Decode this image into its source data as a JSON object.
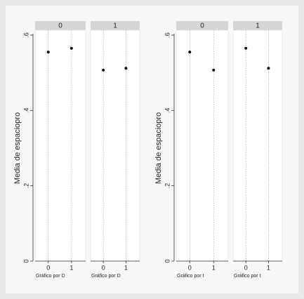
{
  "chart_data": [
    {
      "type": "dot",
      "ylabel": "Media de espaciopro",
      "note": "Gráfico por D",
      "ylim": [
        0,
        0.6
      ],
      "yticks": [
        0,
        {
          "value": 0.2,
          "label": ".2"
        },
        {
          "value": 0.4,
          "label": ".4"
        },
        {
          "value": 0.6,
          "label": ".6"
        }
      ],
      "categories": [
        "0",
        "1"
      ],
      "color": "#111111",
      "grid": true,
      "panels": [
        {
          "title": "0",
          "values": [
            0.555,
            0.565
          ]
        },
        {
          "title": "1",
          "values": [
            0.507,
            0.512
          ]
        }
      ]
    },
    {
      "type": "dot",
      "ylabel": "Media de espaciopro",
      "note": "Gráfico por t",
      "ylim": [
        0,
        0.6
      ],
      "yticks": [
        0,
        {
          "value": 0.2,
          "label": ".2"
        },
        {
          "value": 0.4,
          "label": ".4"
        },
        {
          "value": 0.6,
          "label": ".6"
        }
      ],
      "categories": [
        "0",
        "1"
      ],
      "color": "#111111",
      "grid": true,
      "panels": [
        {
          "title": "0",
          "values": [
            0.555,
            0.507
          ]
        },
        {
          "title": "1",
          "values": [
            0.565,
            0.512
          ]
        }
      ]
    }
  ]
}
